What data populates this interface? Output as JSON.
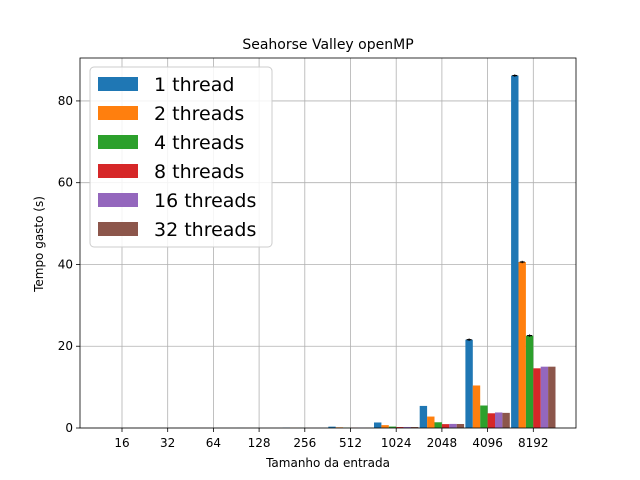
{
  "chart_data": {
    "type": "bar",
    "title": "Seahorse Valley openMP",
    "xlabel": "Tamanho da entrada",
    "ylabel": "Tempo gasto (s)",
    "ylim": [
      0,
      90.5
    ],
    "yticks": [
      0,
      20,
      40,
      60,
      80
    ],
    "grid": true,
    "legend_position": "top-left",
    "categories": [
      "16",
      "32",
      "64",
      "128",
      "256",
      "512",
      "1024",
      "2048",
      "4096",
      "8192"
    ],
    "series": [
      {
        "name": "1 thread",
        "color": "#1f77b4",
        "values": [
          0.0,
          0.0,
          0.01,
          0.02,
          0.08,
          0.33,
          1.35,
          5.4,
          21.6,
          86.2
        ]
      },
      {
        "name": "2 threads",
        "color": "#ff7f0e",
        "values": [
          0.0,
          0.0,
          0.01,
          0.01,
          0.04,
          0.17,
          0.7,
          2.8,
          10.4,
          40.6
        ]
      },
      {
        "name": "4 threads",
        "color": "#2ca02c",
        "values": [
          0.0,
          0.0,
          0.0,
          0.01,
          0.02,
          0.09,
          0.35,
          1.4,
          5.5,
          22.6
        ]
      },
      {
        "name": "8 threads",
        "color": "#d62728",
        "values": [
          0.0,
          0.0,
          0.0,
          0.0,
          0.01,
          0.06,
          0.24,
          0.95,
          3.6,
          14.6
        ]
      },
      {
        "name": "16 threads",
        "color": "#9467bd",
        "values": [
          0.0,
          0.0,
          0.0,
          0.0,
          0.01,
          0.06,
          0.25,
          1.0,
          3.8,
          15.0
        ]
      },
      {
        "name": "32 threads",
        "color": "#8c564b",
        "values": [
          0.0,
          0.0,
          0.0,
          0.0,
          0.01,
          0.06,
          0.24,
          0.98,
          3.7,
          15.0
        ]
      }
    ]
  }
}
